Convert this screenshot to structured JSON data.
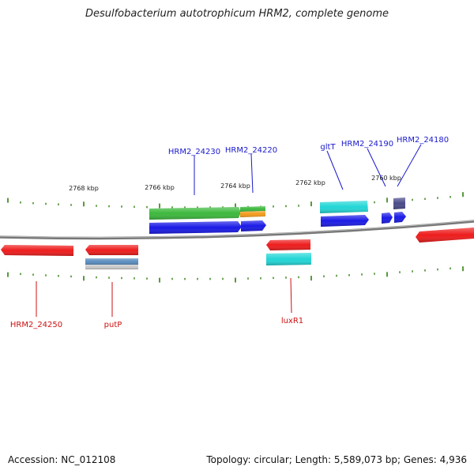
{
  "header": {
    "title": "Desulfobacterium autotrophicum HRM2, complete genome"
  },
  "footer": {
    "accession": "Accession: NC_012108",
    "summary": "Topology: circular; Length: 5,589,073 bp; Genes: 4,936"
  },
  "colors": {
    "backbone": "#777777",
    "tick": "#2f7f10",
    "label_forward": "#1a1acc",
    "label_reverse": "#cc1111",
    "red": "#ee1c1c",
    "blue": "#1a1ae6",
    "green": "#3cb83c",
    "orange": "#f39a1a",
    "cyan": "#22d6d6",
    "steel": "#5a8ec0",
    "grey": "#c8c8c8",
    "navy": "#4a4a8a"
  },
  "scale": {
    "tick_labels": [
      {
        "text": "2768 kbp",
        "kbp": 2768
      },
      {
        "text": "2766 kbp",
        "kbp": 2766
      },
      {
        "text": "2764 kbp",
        "kbp": 2764
      },
      {
        "text": "2762 kbp",
        "kbp": 2762
      },
      {
        "text": "2760 kbp",
        "kbp": 2760
      }
    ]
  },
  "gene_labels": [
    {
      "text": "HRM2_24230",
      "strand": "forward"
    },
    {
      "text": "HRM2_24220",
      "strand": "forward"
    },
    {
      "text": "gltT",
      "strand": "forward"
    },
    {
      "text": "HRM2_24190",
      "strand": "forward"
    },
    {
      "text": "HRM2_24180",
      "strand": "forward"
    },
    {
      "text": "HRM2_24250",
      "strand": "reverse"
    },
    {
      "text": "putP",
      "strand": "reverse"
    },
    {
      "text": "luxR1",
      "strand": "reverse"
    }
  ]
}
